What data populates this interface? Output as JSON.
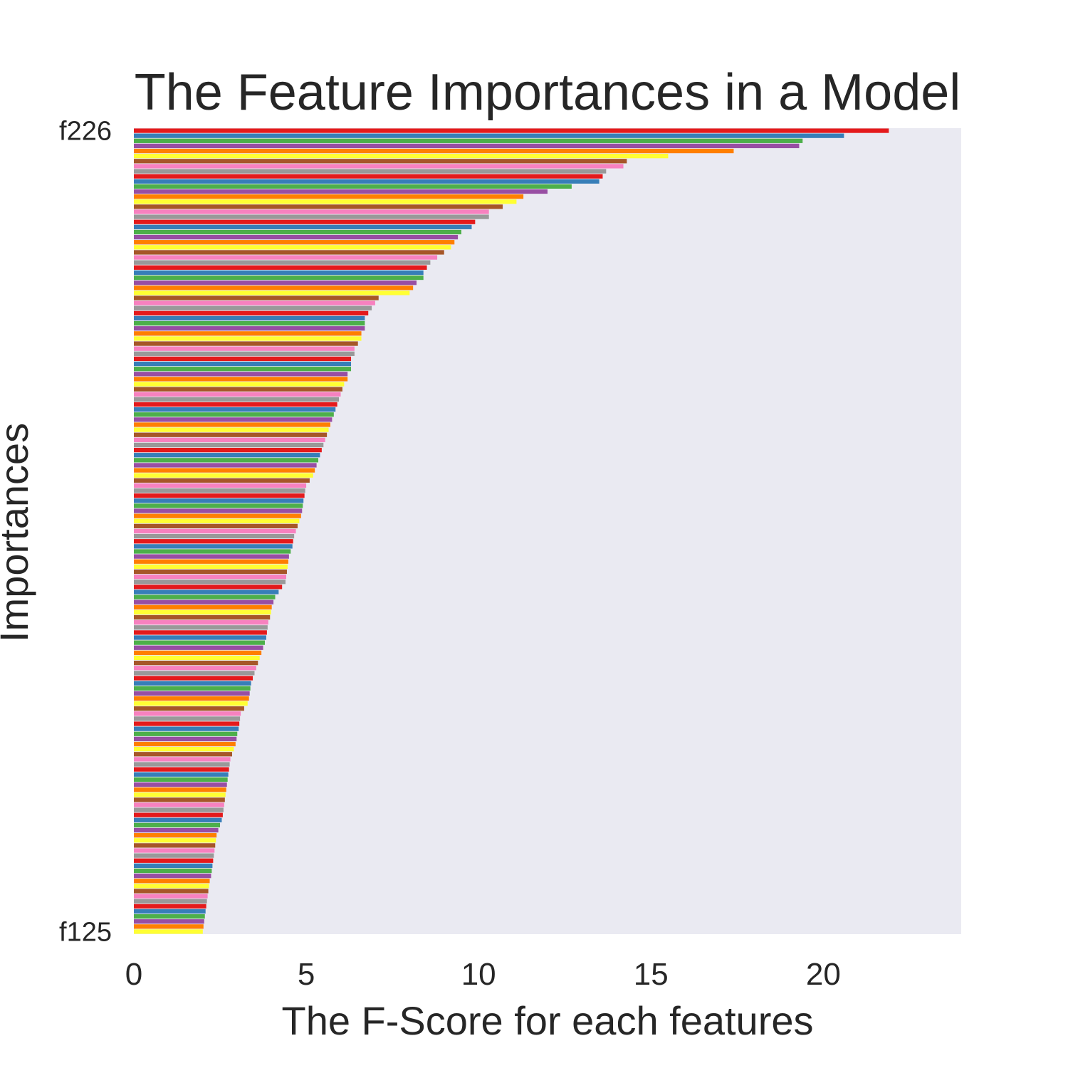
{
  "chart_data": {
    "type": "bar",
    "orientation": "horizontal",
    "title": "The Feature Importances in a Model",
    "xlabel": "The F-Score for each features",
    "ylabel": "Importances",
    "xlim": [
      0,
      24
    ],
    "xticks": [
      0,
      5,
      10,
      15,
      20
    ],
    "grid": false,
    "legend": "none",
    "background": "#eaeaf2",
    "palette": [
      "#e41a1c",
      "#377eb8",
      "#4daf4a",
      "#984ea3",
      "#ff7f00",
      "#ffff33",
      "#a65628",
      "#f781bf",
      "#999999"
    ],
    "first_label": "f226",
    "last_label": "f125",
    "values": [
      21.9,
      20.6,
      19.4,
      19.3,
      17.4,
      15.5,
      14.3,
      14.2,
      13.7,
      13.6,
      13.5,
      12.7,
      12.0,
      11.3,
      11.1,
      10.7,
      10.3,
      10.3,
      9.9,
      9.8,
      9.5,
      9.4,
      9.3,
      9.2,
      9.0,
      8.8,
      8.6,
      8.5,
      8.4,
      8.4,
      8.2,
      8.1,
      8.0,
      7.1,
      7.0,
      6.9,
      6.8,
      6.7,
      6.7,
      6.7,
      6.6,
      6.6,
      6.5,
      6.4,
      6.4,
      6.3,
      6.3,
      6.3,
      6.2,
      6.2,
      6.1,
      6.05,
      6.0,
      5.95,
      5.9,
      5.85,
      5.8,
      5.75,
      5.7,
      5.65,
      5.6,
      5.55,
      5.5,
      5.45,
      5.4,
      5.35,
      5.3,
      5.25,
      5.2,
      5.1,
      5.0,
      4.97,
      4.95,
      4.92,
      4.9,
      4.88,
      4.85,
      4.8,
      4.75,
      4.7,
      4.65,
      4.62,
      4.6,
      4.55,
      4.5,
      4.48,
      4.46,
      4.44,
      4.42,
      4.4,
      4.3,
      4.2,
      4.1,
      4.05,
      4.0,
      3.98,
      3.95,
      3.9,
      3.88,
      3.86,
      3.84,
      3.8,
      3.75,
      3.7,
      3.65,
      3.6,
      3.55,
      3.5,
      3.45,
      3.4,
      3.38,
      3.36,
      3.34,
      3.3,
      3.2,
      3.1,
      3.08,
      3.06,
      3.04,
      3.0,
      2.98,
      2.95,
      2.9,
      2.85,
      2.8,
      2.78,
      2.76,
      2.74,
      2.72,
      2.7,
      2.68,
      2.66,
      2.64,
      2.62,
      2.6,
      2.58,
      2.55,
      2.5,
      2.45,
      2.4,
      2.38,
      2.36,
      2.34,
      2.32,
      2.3,
      2.28,
      2.26,
      2.24,
      2.2,
      2.18,
      2.16,
      2.14,
      2.12,
      2.1,
      2.08,
      2.06,
      2.04,
      2.02,
      2.0
    ]
  }
}
